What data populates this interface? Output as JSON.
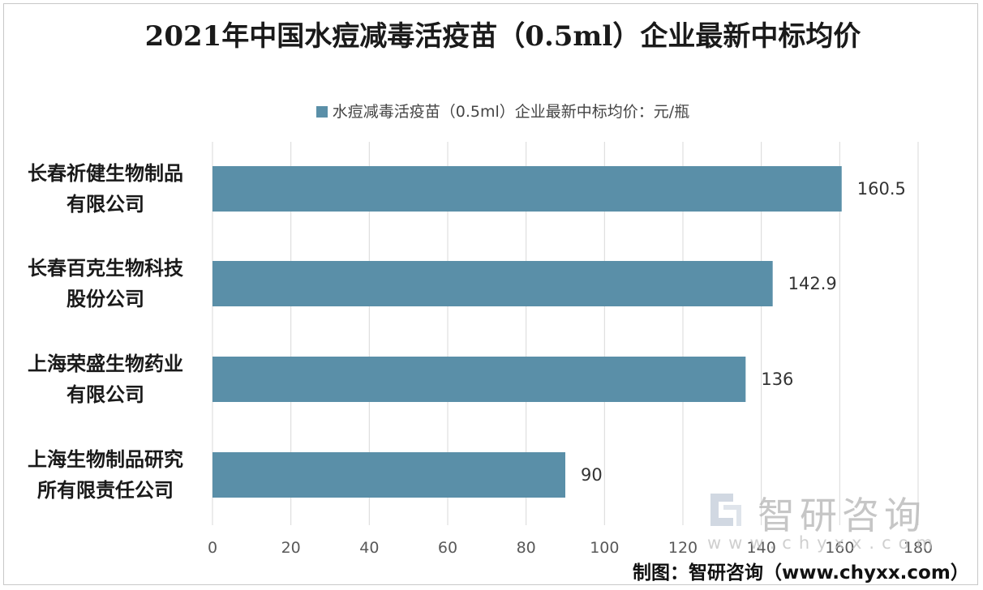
{
  "chart_data": {
    "type": "bar",
    "orientation": "horizontal",
    "title": "2021年中国水痘减毒活疫苗（0.5ml）企业最新中标均价",
    "categories": [
      "长春祈健生物制品有限公司",
      "长春百克生物科技股份公司",
      "上海荣盛生物药业有限公司",
      "上海生物制品研究所有限责任公司"
    ],
    "category_lines": [
      [
        "长春祈健生物制品",
        "有限公司"
      ],
      [
        "长春百克生物科技",
        "股份公司"
      ],
      [
        "上海荣盛生物药业",
        "有限公司"
      ],
      [
        "上海生物制品研究",
        "所有限责任公司"
      ]
    ],
    "series": [
      {
        "name": "水痘减毒活疫苗（0.5ml）企业最新中标均价：元/瓶",
        "values": [
          160.5,
          142.9,
          136,
          90
        ]
      }
    ],
    "data_labels": [
      "160.5",
      "142.9",
      "136",
      "90"
    ],
    "xlim": [
      0,
      180
    ],
    "x_ticks": [
      0,
      20,
      40,
      60,
      80,
      100,
      120,
      140,
      160,
      180
    ],
    "xlabel": "",
    "ylabel": "",
    "grid": "vertical",
    "legend_position": "top",
    "colors": {
      "bar": "#5a8fa8",
      "grid": "#d9d9d9",
      "tick_text": "#595959",
      "value_text": "#333333"
    }
  },
  "watermark": {
    "brand": "智研咨询",
    "url": "www.chyxx.com"
  },
  "source_note": "制图：智研咨询（www.chyxx.com）"
}
